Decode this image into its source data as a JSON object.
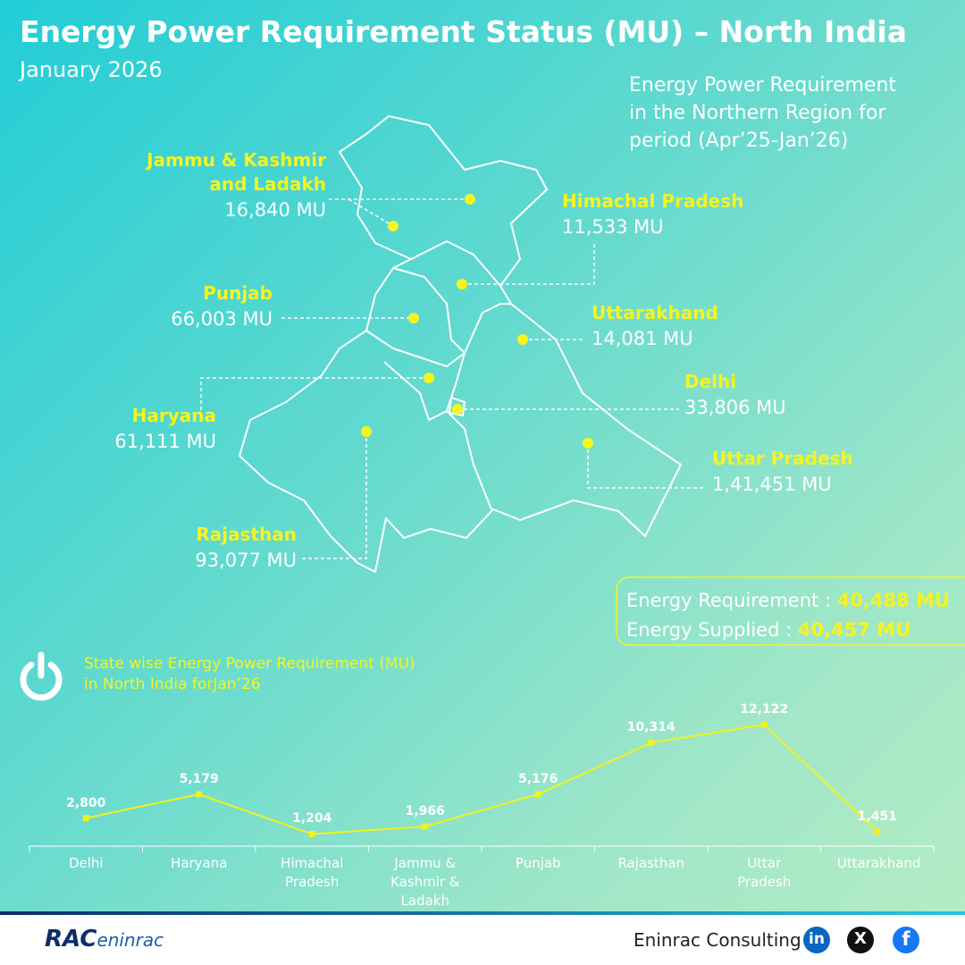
{
  "header": {
    "title": "Energy Power Requirement Status (MU) – North India",
    "subtitle": "January 2026"
  },
  "map": {
    "caption": [
      "Energy Power Requirement",
      "in the Northern Region for",
      "period (Apr’25-Jan’26)"
    ],
    "labels": [
      {
        "name": [
          "Jammu & Kashmir",
          "and Ladakh"
        ],
        "value": "16,840 MU"
      },
      {
        "name": [
          "Himachal Pradesh"
        ],
        "value": "11,533 MU"
      },
      {
        "name": [
          "Punjab"
        ],
        "value": "66,003 MU"
      },
      {
        "name": [
          "Uttarakhand"
        ],
        "value": "14,081 MU"
      },
      {
        "name": [
          "Haryana"
        ],
        "value": "61,111 MU"
      },
      {
        "name": [
          "Delhi"
        ],
        "value": "33,806 MU"
      },
      {
        "name": [
          "Uttar Pradesh"
        ],
        "value": "1,41,451 MU"
      },
      {
        "name": [
          "Rajasthan"
        ],
        "value": "93,077 MU"
      }
    ]
  },
  "summary": [
    {
      "label": "Energy Requirement : ",
      "value": "40,488 MU"
    },
    {
      "label": "Energy Supplied : ",
      "value": "40,457 MU"
    }
  ],
  "chart_data": {
    "type": "line",
    "title": [
      "State wise Energy Power Requirement (MU)",
      "in North India forJan’26"
    ],
    "categories": [
      "Delhi",
      "Haryana",
      "Himachal Pradesh",
      "Jammu & Kashmir & Ladakh",
      "Punjab",
      "Rajasthan",
      "Uttar Pradesh",
      "Uttarakhand"
    ],
    "series": [
      {
        "name": "Energy Power Requirement",
        "color": "#f2f21c",
        "values": [
          2800,
          5179,
          1204,
          1966,
          5176,
          10314,
          12122,
          1451
        ],
        "value_labels": [
          "2,800",
          "5,179",
          "1,204",
          "1,966",
          "5,176",
          "10,314",
          "12,122",
          "1,451"
        ]
      }
    ]
  },
  "footer": {
    "logo": [
      "RAC",
      "eninrac"
    ],
    "brand": "Eninrac Consulting",
    "social": [
      "in",
      "X",
      "f"
    ]
  }
}
